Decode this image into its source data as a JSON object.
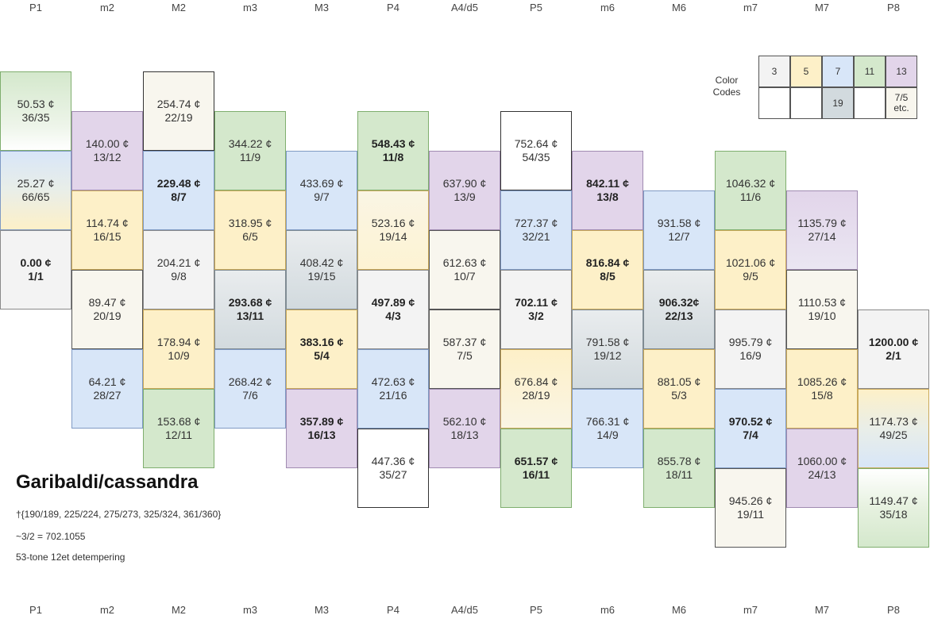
{
  "column_headers": [
    "P1",
    "m2",
    "M2",
    "m3",
    "M3",
    "P4",
    "A4/d5",
    "P5",
    "m6",
    "M6",
    "m7",
    "M7",
    "P8"
  ],
  "colors": {
    "3": "#f3f3f3",
    "5": "#fdf0c8",
    "7": "#d8e6f8",
    "11": "#d4e8cc",
    "13": "#e2d5ea",
    "19": "#d2dade",
    "multi": "#f8f6ee"
  },
  "cells": [
    {
      "cents": "50.53 ¢",
      "ratio": "36/35",
      "code": "11w",
      "bold": false
    },
    {
      "cents": "25.27 ¢",
      "ratio": "66/65",
      "code": "7-5",
      "bold": false
    },
    {
      "cents": "0.00 ¢",
      "ratio": "1/1",
      "code": "3",
      "bold": true
    },
    {
      "cents": "140.00 ¢",
      "ratio": "13/12",
      "code": "13",
      "bold": false
    },
    {
      "cents": "114.74 ¢",
      "ratio": "16/15",
      "code": "5",
      "bold": false
    },
    {
      "cents": "89.47 ¢",
      "ratio": "20/19",
      "code": "multi",
      "bold": false
    },
    {
      "cents": "64.21 ¢",
      "ratio": "28/27",
      "code": "7",
      "bold": false
    },
    {
      "cents": "254.74 ¢",
      "ratio": "22/19",
      "code": "multi-white",
      "bold": false
    },
    {
      "cents": "229.48 ¢",
      "ratio": "8/7",
      "code": "7",
      "bold": true
    },
    {
      "cents": "204.21 ¢",
      "ratio": "9/8",
      "code": "3",
      "bold": false
    },
    {
      "cents": "178.94 ¢",
      "ratio": "10/9",
      "code": "5",
      "bold": false
    },
    {
      "cents": "153.68 ¢",
      "ratio": "12/11",
      "code": "11",
      "bold": false
    },
    {
      "cents": "344.22 ¢",
      "ratio": "11/9",
      "code": "11",
      "bold": false
    },
    {
      "cents": "318.95 ¢",
      "ratio": "6/5",
      "code": "5",
      "bold": false
    },
    {
      "cents": "293.68 ¢",
      "ratio": "13/11",
      "code": "19",
      "bold": true
    },
    {
      "cents": "268.42 ¢",
      "ratio": "7/6",
      "code": "7",
      "bold": false
    },
    {
      "cents": "433.69 ¢",
      "ratio": "9/7",
      "code": "7",
      "bold": false
    },
    {
      "cents": "408.42 ¢",
      "ratio": "19/15",
      "code": "19",
      "bold": false
    },
    {
      "cents": "383.16 ¢",
      "ratio": "5/4",
      "code": "5",
      "bold": true
    },
    {
      "cents": "357.89 ¢",
      "ratio": "16/13",
      "code": "13",
      "bold": true
    },
    {
      "cents": "548.43 ¢",
      "ratio": "11/8",
      "code": "11",
      "bold": true
    },
    {
      "cents": "523.16 ¢",
      "ratio": "19/14",
      "code": "m-5",
      "bold": false
    },
    {
      "cents": "497.89 ¢",
      "ratio": "4/3",
      "code": "3",
      "bold": true
    },
    {
      "cents": "472.63 ¢",
      "ratio": "21/16",
      "code": "7",
      "bold": false
    },
    {
      "cents": "447.36 ¢",
      "ratio": "35/27",
      "code": "white",
      "bold": false
    },
    {
      "cents": "637.90 ¢",
      "ratio": "13/9",
      "code": "13",
      "bold": false
    },
    {
      "cents": "612.63 ¢",
      "ratio": "10/7",
      "code": "multi",
      "bold": false
    },
    {
      "cents": "587.37 ¢",
      "ratio": "7/5",
      "code": "multi",
      "bold": false
    },
    {
      "cents": "562.10 ¢",
      "ratio": "18/13",
      "code": "13",
      "bold": false
    },
    {
      "cents": "752.64 ¢",
      "ratio": "54/35",
      "code": "white",
      "bold": false
    },
    {
      "cents": "727.37 ¢",
      "ratio": "32/21",
      "code": "7",
      "bold": false
    },
    {
      "cents": "702.11 ¢",
      "ratio": "3/2",
      "code": "3",
      "bold": true
    },
    {
      "cents": "676.84 ¢",
      "ratio": "28/19",
      "code": "5-w",
      "bold": false
    },
    {
      "cents": "651.57 ¢",
      "ratio": "16/11",
      "code": "11",
      "bold": true
    },
    {
      "cents": "842.11 ¢",
      "ratio": "13/8",
      "code": "13",
      "bold": true
    },
    {
      "cents": "816.84 ¢",
      "ratio": "8/5",
      "code": "5",
      "bold": true
    },
    {
      "cents": "791.58 ¢",
      "ratio": "19/12",
      "code": "19",
      "bold": false
    },
    {
      "cents": "766.31 ¢",
      "ratio": "14/9",
      "code": "7",
      "bold": false
    },
    {
      "cents": "931.58 ¢",
      "ratio": "12/7",
      "code": "7",
      "bold": false
    },
    {
      "cents": "906.32¢",
      "ratio": "22/13",
      "code": "19",
      "bold": true
    },
    {
      "cents": "881.05 ¢",
      "ratio": "5/3",
      "code": "5",
      "bold": false
    },
    {
      "cents": "855.78 ¢",
      "ratio": "18/11",
      "code": "11",
      "bold": false
    },
    {
      "cents": "1046.32 ¢",
      "ratio": "11/6",
      "code": "11",
      "bold": false
    },
    {
      "cents": "1021.06 ¢",
      "ratio": "9/5",
      "code": "5",
      "bold": false
    },
    {
      "cents": "995.79 ¢",
      "ratio": "16/9",
      "code": "3",
      "bold": false
    },
    {
      "cents": "970.52 ¢",
      "ratio": "7/4",
      "code": "7",
      "bold": true
    },
    {
      "cents": "945.26 ¢",
      "ratio": "19/11",
      "code": "multi",
      "bold": false
    },
    {
      "cents": "1135.79 ¢",
      "ratio": "27/14",
      "code": "13-w",
      "bold": false
    },
    {
      "cents": "1110.53 ¢",
      "ratio": "19/10",
      "code": "multi",
      "bold": false
    },
    {
      "cents": "1085.26 ¢",
      "ratio": "15/8",
      "code": "5",
      "bold": false
    },
    {
      "cents": "1060.00 ¢",
      "ratio": "24/13",
      "code": "13",
      "bold": false
    },
    {
      "cents": "1200.00 ¢",
      "ratio": "2/1",
      "code": "3",
      "bold": true
    },
    {
      "cents": "1174.73 ¢",
      "ratio": "49/25",
      "code": "5-7",
      "bold": false
    },
    {
      "cents": "1149.47 ¢",
      "ratio": "35/18",
      "code": "w-11",
      "bold": false
    }
  ],
  "title": "Garibaldi/cassandra",
  "notes": [
    "†{190/189, 225/224, 275/273, 325/324, 361/360}",
    "~3/2 = 702.1055",
    "53-tone 12et detempering"
  ],
  "legend": {
    "label": "Color Codes",
    "top": [
      "3",
      "5",
      "7",
      "11",
      "13"
    ],
    "bottom": [
      "",
      "",
      "19",
      "",
      "7/5 etc."
    ]
  }
}
